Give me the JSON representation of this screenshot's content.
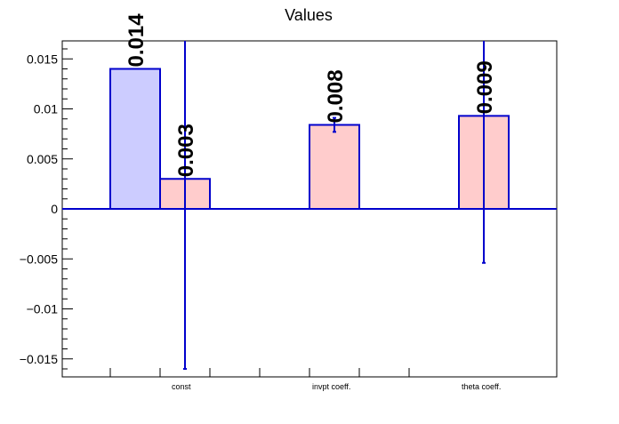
{
  "chart_data": {
    "type": "bar",
    "title": "Values",
    "xlabel": "",
    "ylabel": "",
    "categories": [
      "const",
      "invpt coeff.",
      "theta coeff."
    ],
    "ylim": [
      -0.0168,
      0.0168
    ],
    "yticks": [
      -0.015,
      -0.01,
      -0.005,
      0,
      0.005,
      0.01,
      0.015
    ],
    "ytick_labels": [
      "−0.015",
      "−0.01",
      "−0.005",
      "0",
      "0.005",
      "0.01",
      "0.015"
    ],
    "grid": false,
    "series": [
      {
        "fill": "#ccccff",
        "stroke": "#0000cc",
        "values": [
          0.014,
          null,
          null
        ],
        "errors": [
          null,
          null,
          null
        ],
        "labels": [
          "0.014",
          "",
          ""
        ]
      },
      {
        "fill": "#ffcccc",
        "stroke": "#0000cc",
        "values": [
          0.003,
          0.0084,
          0.0093
        ],
        "errors": [
          0.019,
          0.0007,
          0.0147
        ],
        "labels": [
          "0.003",
          "0.008",
          "0.009"
        ]
      }
    ],
    "colors": {
      "axis": "#000000",
      "error_bar": "#0000cc",
      "zero_line": "#0000cc"
    }
  }
}
